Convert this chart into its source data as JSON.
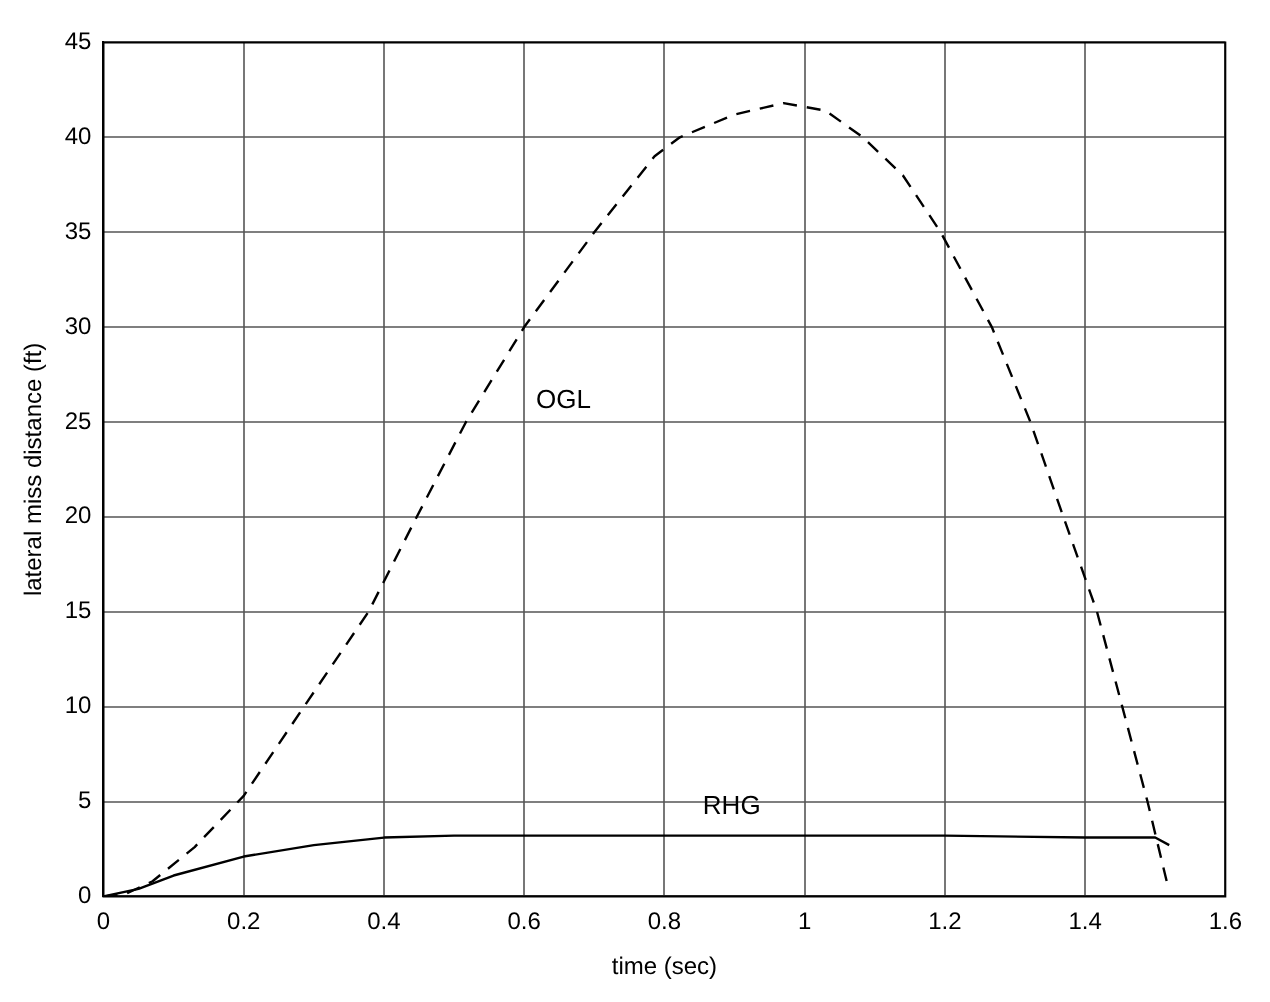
{
  "chart_data": {
    "type": "line",
    "xlabel": "time (sec)",
    "ylabel": "lateral miss distance (ft)",
    "xlim": [
      0,
      1.6
    ],
    "xticks": [
      0,
      0.2,
      0.4,
      0.6,
      0.8,
      1,
      1.2,
      1.4,
      1.6
    ],
    "ylim": [
      0,
      45
    ],
    "yticks": [
      0,
      5,
      10,
      15,
      20,
      25,
      30,
      35,
      40,
      45
    ],
    "grid": true,
    "marker": "none",
    "series": [
      {
        "name": "OGL",
        "color": "#000000",
        "line_style": "dashed",
        "x": [
          0,
          0.03,
          0.07,
          0.13,
          0.2,
          0.286,
          0.378,
          0.444,
          0.517,
          0.6,
          0.7,
          0.786,
          0.822,
          0.9,
          0.97,
          1.03,
          1.083,
          1.14,
          1.194,
          1.267,
          1.322,
          1.369,
          1.417,
          1.453,
          1.489,
          1.517
        ],
        "values": [
          0,
          0.1,
          0.8,
          2.6,
          5.3,
          10,
          15,
          19.8,
          25,
          30,
          35,
          39,
          40,
          41.2,
          41.8,
          41.4,
          40,
          38,
          35,
          30,
          25,
          20,
          15,
          10,
          5,
          0.7
        ]
      },
      {
        "name": "RHG",
        "color": "#000000",
        "line_style": "solid",
        "x": [
          0,
          0.05,
          0.1,
          0.2,
          0.3,
          0.4,
          0.5,
          0.6,
          0.8,
          1,
          1.2,
          1.4,
          1.5,
          1.52
        ],
        "values": [
          0,
          0.4,
          1.1,
          2.1,
          2.7,
          3.1,
          3.2,
          3.2,
          3.2,
          3.2,
          3.2,
          3.1,
          3.1,
          2.7
        ]
      }
    ]
  }
}
